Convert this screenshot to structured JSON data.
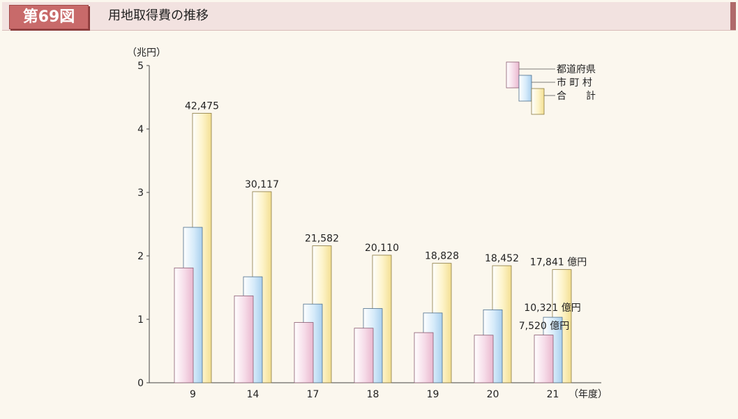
{
  "header": {
    "figure_number": "第69図",
    "title": "用地取得費の推移"
  },
  "chart_data": {
    "type": "bar",
    "title": "用地取得費の推移",
    "ylabel": "（兆円）",
    "xlabel": "（年度）",
    "ylim": [
      0,
      5
    ],
    "yticks": [
      "0",
      "1",
      "2",
      "3",
      "4",
      "5"
    ],
    "categories": [
      "9",
      "14",
      "17",
      "18",
      "19",
      "20",
      "21"
    ],
    "series": [
      {
        "name": "都道府県",
        "color": "#f3d4e3",
        "values": [
          1.81,
          1.37,
          0.95,
          0.86,
          0.79,
          0.75,
          0.752
        ]
      },
      {
        "name": "市町村",
        "color": "#cfe6f7",
        "values": [
          2.45,
          1.67,
          1.24,
          1.17,
          1.1,
          1.15,
          1.0321
        ]
      },
      {
        "name": "合計",
        "color": "#fbf0bf",
        "values": [
          4.2475,
          3.0117,
          2.1582,
          2.011,
          1.8828,
          1.8452,
          1.7841
        ]
      }
    ],
    "total_labels": [
      "42,475",
      "30,117",
      "21,582",
      "20,110",
      "18,828",
      "18,452",
      "17,841 億円"
    ],
    "annotations": [
      "10,321 億円",
      "7,520 億円"
    ],
    "legend": {
      "position": "top-right",
      "labels": [
        "都道府県",
        "市 町 村",
        "合　　計"
      ]
    }
  }
}
